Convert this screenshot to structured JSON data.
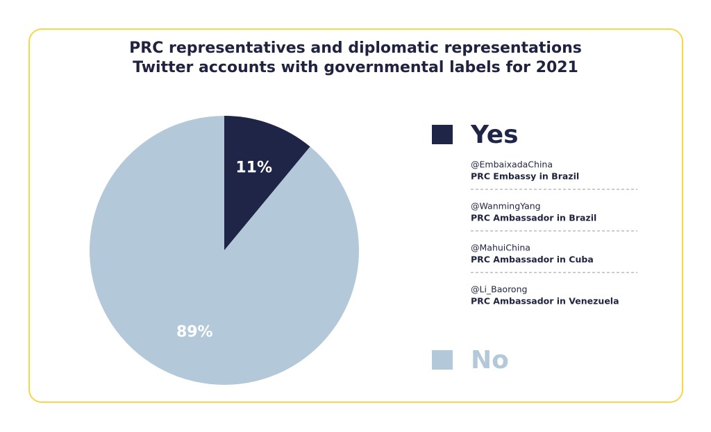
{
  "chart_data": {
    "type": "pie",
    "title": [
      "PRC representatives and diplomatic representations",
      "Twitter accounts with governmental labels for 2021"
    ],
    "categories": [
      "Yes",
      "No"
    ],
    "values": [
      11,
      89
    ],
    "value_labels": [
      "11%",
      "89%"
    ],
    "colors": [
      "#1f2547",
      "#b3c8d9"
    ],
    "accounts": [
      {
        "handle": "@EmbaixadaChina",
        "role": "PRC Embassy in Brazil"
      },
      {
        "handle": "@WanmingYang",
        "role": "PRC Ambassador in Brazil"
      },
      {
        "handle": "@MahuiChina",
        "role": "PRC Ambassador in Cuba"
      },
      {
        "handle": "@Li_Baorong",
        "role": "PRC Ambassador in Venezuela"
      }
    ]
  }
}
